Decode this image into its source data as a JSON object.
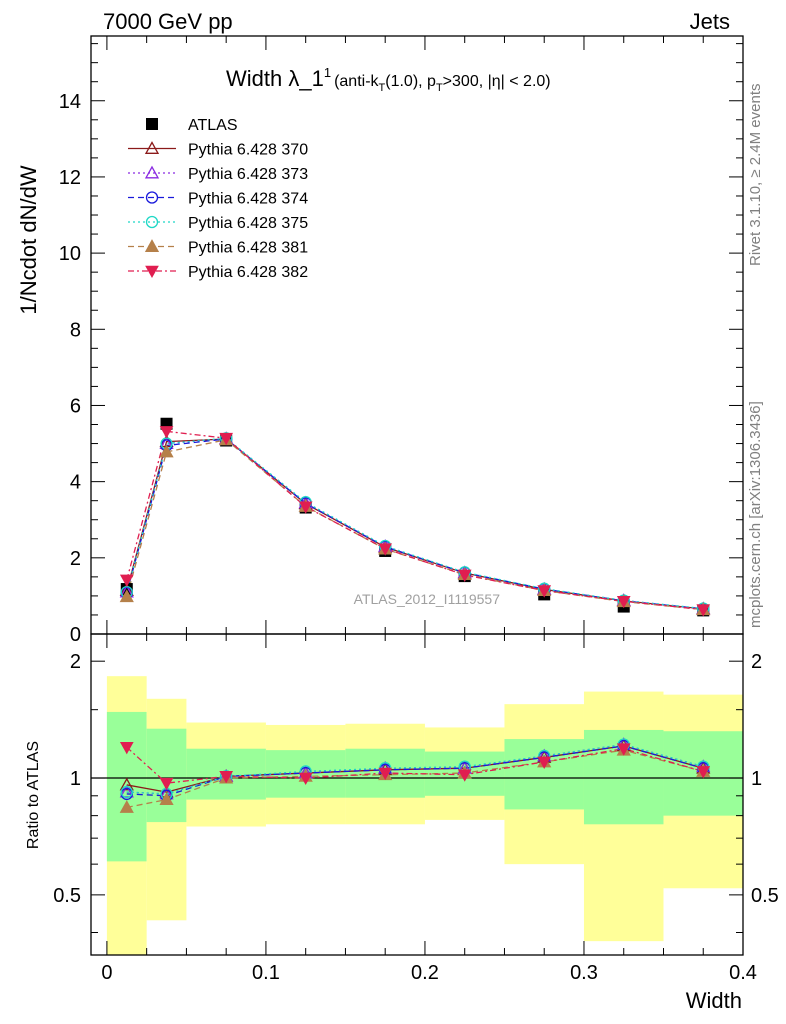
{
  "header": {
    "left": "7000 GeV pp",
    "right": "Jets"
  },
  "side_labels": {
    "rivet": "Rivet 3.1.10, ≥ 2.4M events",
    "mcplots": "mcplots.cern.ch [arXiv:1306.3436]"
  },
  "watermark": "ATLAS_2012_I1119557",
  "title": {
    "main": "Width λ_1",
    "sup": "1",
    "cond_a": "(anti-k",
    "cond_sub": "T",
    "cond_b": "(1.0), p",
    "cond_c": ">300, |η| < 2.0)"
  },
  "chart_data": [
    {
      "type": "line",
      "panel": "main",
      "ylabel": "1/Ncdot dN/dW",
      "xlim": [
        -0.01,
        0.4
      ],
      "ylim": [
        0,
        15.7
      ],
      "yticks": [
        0,
        2,
        4,
        6,
        8,
        10,
        12,
        14
      ],
      "legend_position": "top-left",
      "x": [
        0.0125,
        0.0375,
        0.075,
        0.125,
        0.175,
        0.225,
        0.275,
        0.325,
        0.375
      ],
      "series": [
        {
          "name": "ATLAS",
          "color": "#000000",
          "marker": "square",
          "dash": "none",
          "values": [
            1.18,
            5.52,
            5.08,
            3.32,
            2.18,
            1.52,
            1.04,
            0.72,
            0.62
          ]
        },
        {
          "name": "Pythia 6.428 370",
          "color": "#8b1a1a",
          "marker": "triangle-open",
          "dash": "solid",
          "values": [
            1.14,
            5.05,
            5.12,
            3.42,
            2.28,
            1.6,
            1.17,
            0.87,
            0.66
          ]
        },
        {
          "name": "Pythia 6.428 373",
          "color": "#8a2be2",
          "marker": "triangle-open",
          "dash": "dotted",
          "values": [
            1.1,
            5.0,
            5.13,
            3.44,
            2.3,
            1.61,
            1.18,
            0.88,
            0.66
          ]
        },
        {
          "name": "Pythia 6.428 374",
          "color": "#1a1adb",
          "marker": "circle-open",
          "dash": "dashed",
          "values": [
            1.08,
            4.95,
            5.12,
            3.43,
            2.29,
            1.61,
            1.18,
            0.87,
            0.66
          ]
        },
        {
          "name": "Pythia 6.428 375",
          "color": "#1ed8c6",
          "marker": "circle-open",
          "dash": "dotted",
          "values": [
            1.1,
            5.0,
            5.14,
            3.46,
            2.31,
            1.62,
            1.19,
            0.88,
            0.67
          ]
        },
        {
          "name": "Pythia 6.428 381",
          "color": "#b5804a",
          "marker": "triangle-filled",
          "dash": "dashed",
          "values": [
            0.98,
            4.78,
            5.1,
            3.35,
            2.23,
            1.56,
            1.14,
            0.85,
            0.64
          ]
        },
        {
          "name": "Pythia 6.428 382",
          "color": "#e01e50",
          "marker": "triangle-down-filled",
          "dash": "dashdot",
          "values": [
            1.42,
            5.32,
            5.14,
            3.34,
            2.24,
            1.55,
            1.14,
            0.86,
            0.64
          ]
        }
      ]
    },
    {
      "type": "line",
      "panel": "ratio",
      "xlabel": "Width",
      "ylabel": "Ratio to ATLAS",
      "xlim": [
        -0.01,
        0.4
      ],
      "ylim": [
        0.35,
        2.35
      ],
      "log_scale_y": true,
      "yticks": [
        0.5,
        1,
        2
      ],
      "xticks": [
        0,
        0.1,
        0.2,
        0.3,
        0.4
      ],
      "x": [
        0.0125,
        0.0375,
        0.075,
        0.125,
        0.175,
        0.225,
        0.275,
        0.325,
        0.375
      ],
      "uncertainty_bins": [
        {
          "x": [
            0,
            0.025
          ],
          "inner": [
            0.61,
            1.48
          ],
          "outer": [
            0.35,
            1.83
          ]
        },
        {
          "x": [
            0.025,
            0.05
          ],
          "inner": [
            0.77,
            1.34
          ],
          "outer": [
            0.43,
            1.6
          ]
        },
        {
          "x": [
            0.05,
            0.1
          ],
          "inner": [
            0.88,
            1.19
          ],
          "outer": [
            0.75,
            1.39
          ]
        },
        {
          "x": [
            0.1,
            0.15
          ],
          "inner": [
            0.89,
            1.18
          ],
          "outer": [
            0.76,
            1.37
          ]
        },
        {
          "x": [
            0.15,
            0.2
          ],
          "inner": [
            0.89,
            1.19
          ],
          "outer": [
            0.76,
            1.38
          ]
        },
        {
          "x": [
            0.2,
            0.25
          ],
          "inner": [
            0.9,
            1.17
          ],
          "outer": [
            0.78,
            1.35
          ]
        },
        {
          "x": [
            0.25,
            0.3
          ],
          "inner": [
            0.83,
            1.26
          ],
          "outer": [
            0.6,
            1.55
          ]
        },
        {
          "x": [
            0.3,
            0.35
          ],
          "inner": [
            0.76,
            1.33
          ],
          "outer": [
            0.38,
            1.67
          ]
        },
        {
          "x": [
            0.35,
            0.4
          ],
          "inner": [
            0.8,
            1.32
          ],
          "outer": [
            0.52,
            1.64
          ]
        }
      ],
      "series": [
        {
          "name": "Pythia 6.428 370",
          "values": [
            0.96,
            0.92,
            1.01,
            1.03,
            1.05,
            1.06,
            1.13,
            1.21,
            1.06
          ]
        },
        {
          "name": "Pythia 6.428 373",
          "values": [
            0.92,
            0.91,
            1.01,
            1.03,
            1.06,
            1.06,
            1.14,
            1.22,
            1.07
          ]
        },
        {
          "name": "Pythia 6.428 374",
          "values": [
            0.91,
            0.9,
            1.01,
            1.03,
            1.05,
            1.06,
            1.13,
            1.21,
            1.06
          ]
        },
        {
          "name": "Pythia 6.428 375",
          "values": [
            0.92,
            0.91,
            1.01,
            1.04,
            1.06,
            1.07,
            1.14,
            1.22,
            1.07
          ]
        },
        {
          "name": "Pythia 6.428 381",
          "values": [
            0.84,
            0.88,
            1.0,
            1.01,
            1.02,
            1.03,
            1.1,
            1.18,
            1.04
          ]
        },
        {
          "name": "Pythia 6.428 382",
          "values": [
            1.2,
            0.97,
            1.01,
            1.0,
            1.03,
            1.02,
            1.1,
            1.19,
            1.04
          ]
        }
      ]
    }
  ]
}
